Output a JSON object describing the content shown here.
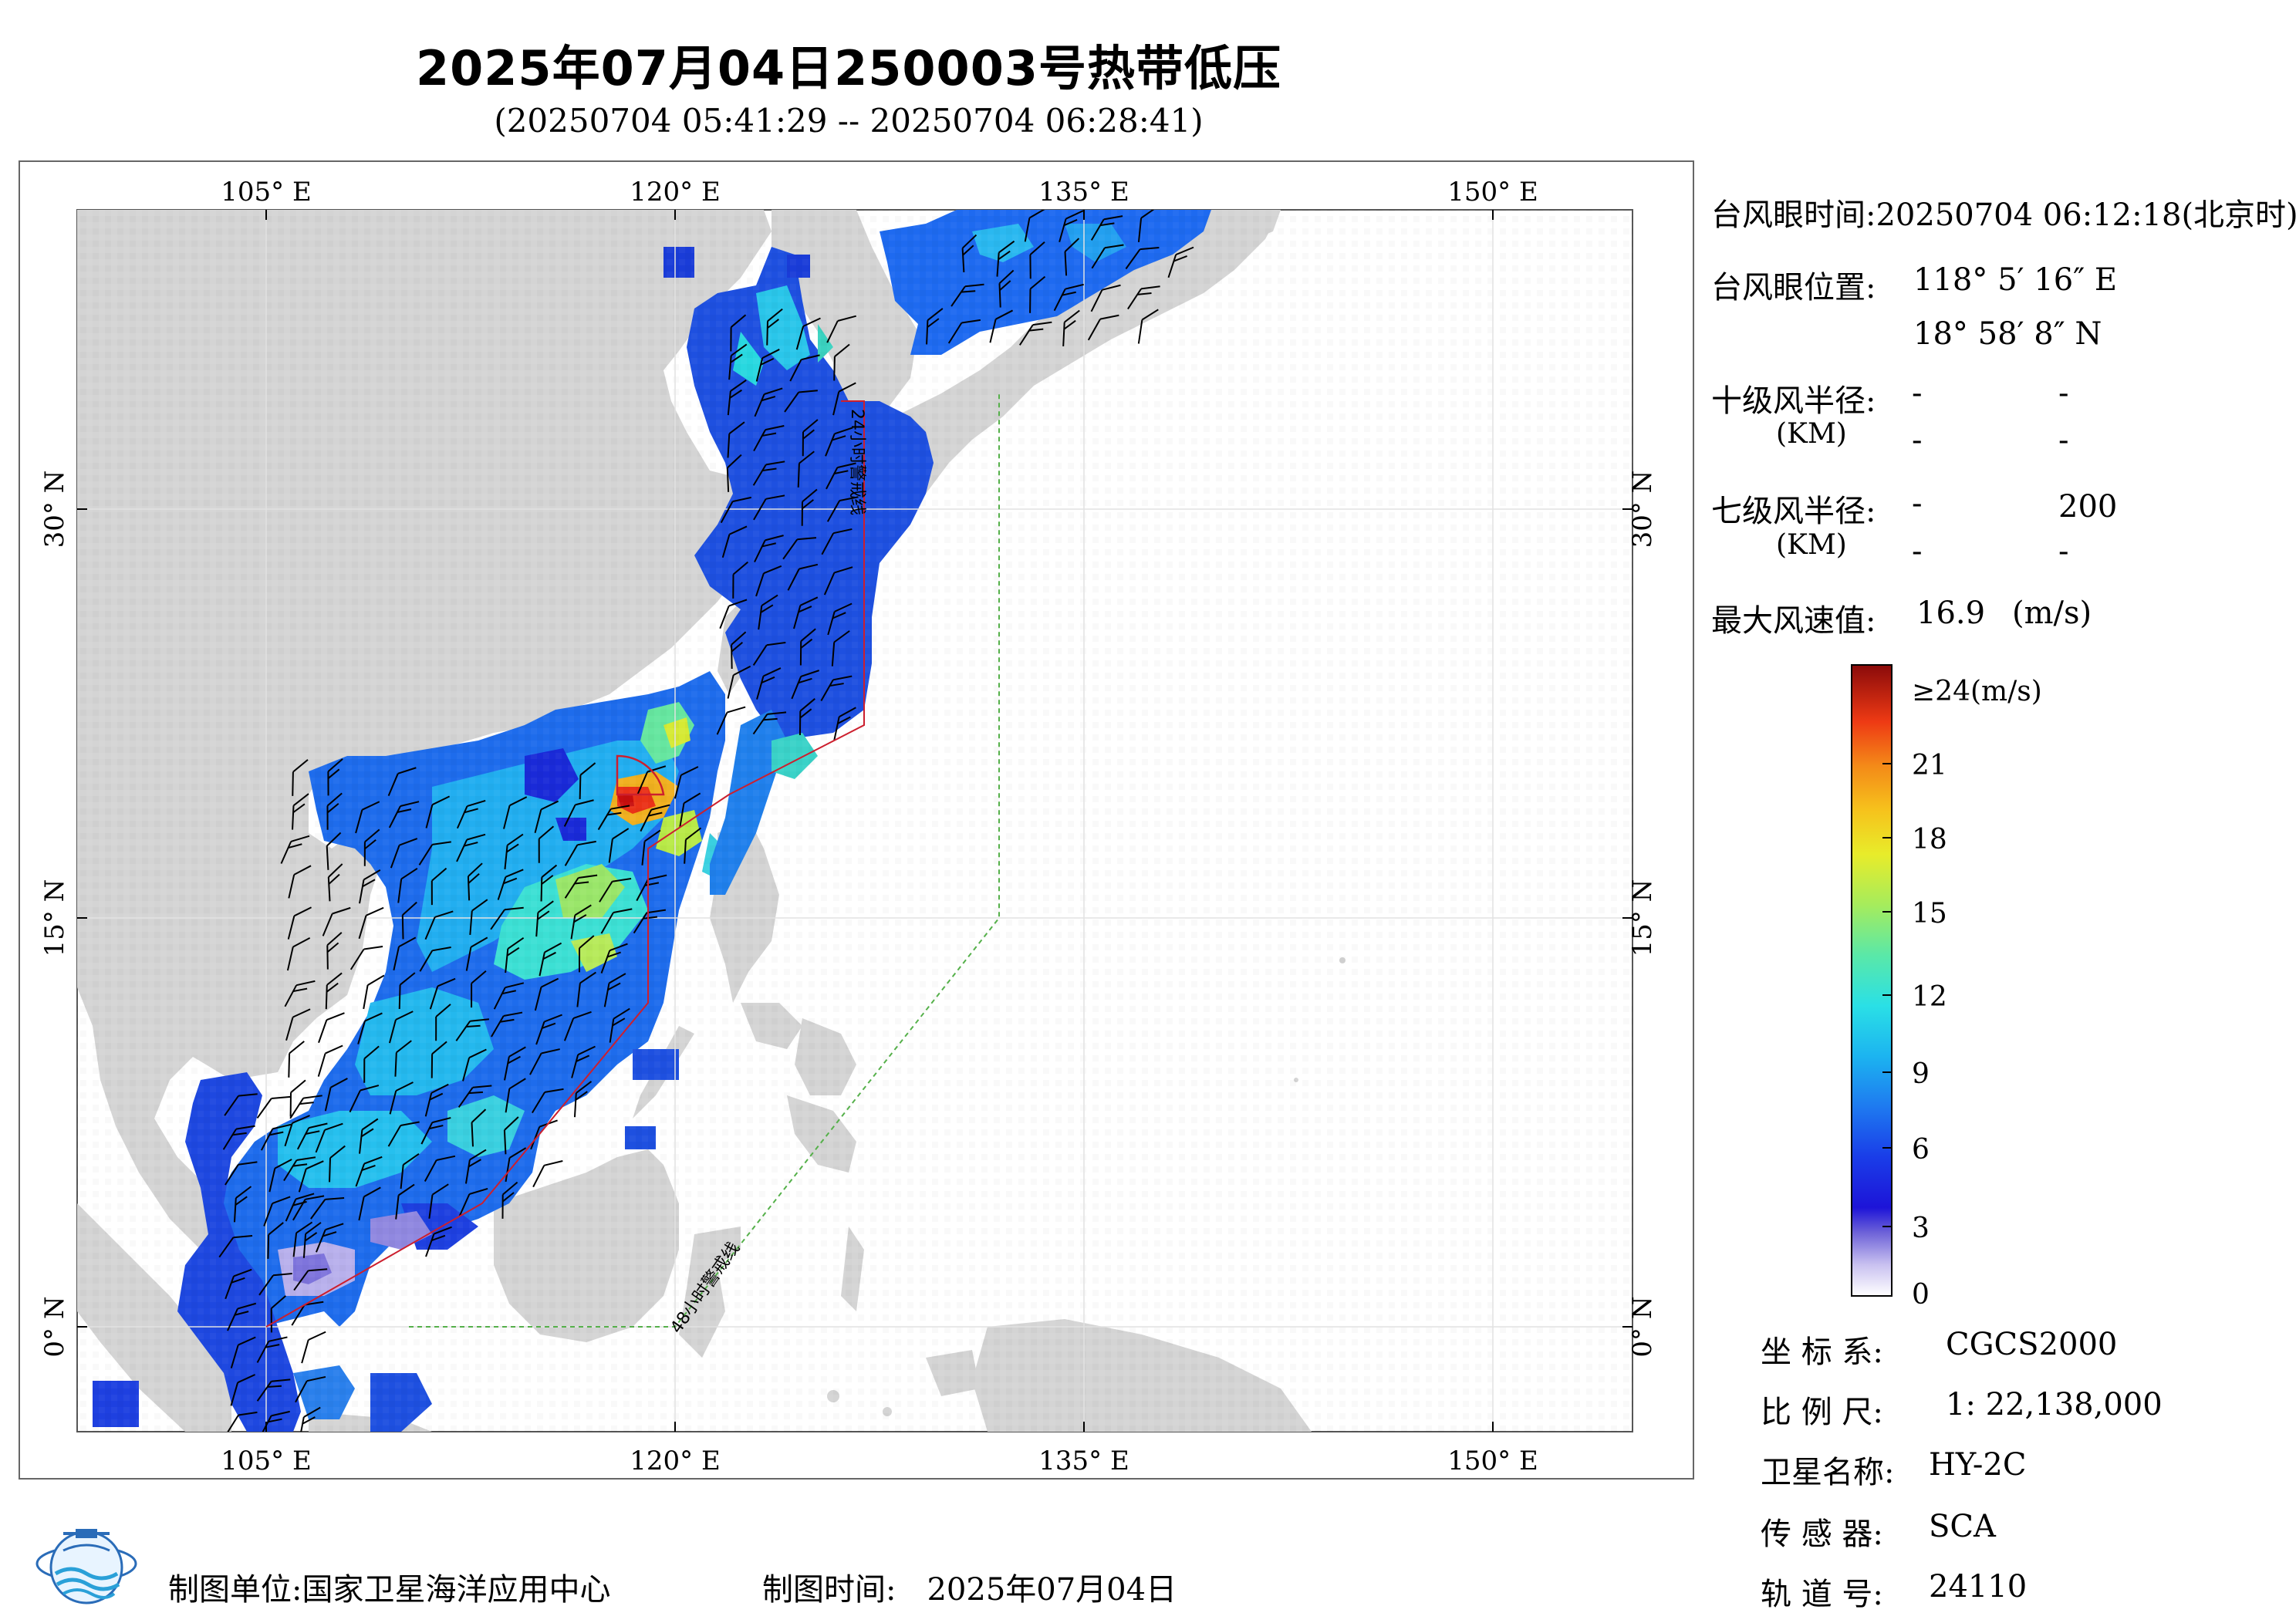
{
  "title": "2025年07月04日250003号热带低压",
  "subtitle": "(20250704 05:41:29 -- 20250704 06:28:41)",
  "map": {
    "lon_labels": [
      "105° E",
      "120° E",
      "135° E",
      "150° E"
    ],
    "lat_labels": [
      "30° N",
      "15° N",
      "0° N"
    ],
    "warning_24h_label": "24小时警戒线",
    "warning_48h_label": "48小时警戒线",
    "colors": {
      "land": "#d4d4d4",
      "sea": "#ffffff",
      "warn24": "#cc1f2e",
      "warn48": "#55b04a",
      "eye_marker": "#cc1f2e"
    }
  },
  "info": {
    "eye_time_label": "台风眼时间:",
    "eye_time_value": "20250704 06:12:18(北京时)",
    "eye_pos_label": "台风眼位置:",
    "eye_lon": "118° 5′ 16″ E",
    "eye_lat": "18° 58′ 8″ N",
    "r10_label": "十级风半径:",
    "r10_unit": "(KM)",
    "r10_values": [
      "-",
      "-",
      "-",
      "-"
    ],
    "r7_label": "七级风半径:",
    "r7_unit": "(KM)",
    "r7_values": [
      "-",
      "200",
      "-",
      "-"
    ],
    "max_wind_label": "最大风速值:",
    "max_wind_value": "16.9",
    "max_wind_unit": "(m/s)"
  },
  "colorbar": {
    "top_label": "≥24(m/s)",
    "ticks": [
      "21",
      "18",
      "15",
      "12",
      "9",
      "6",
      "3",
      "0"
    ]
  },
  "meta": {
    "crs_label": "坐 标 系:",
    "crs_value": "CGCS2000",
    "scale_label": "比 例 尺:",
    "scale_value": "1: 22,138,000",
    "sat_label": "卫星名称:",
    "sat_value": "HY-2C",
    "sensor_label": "传 感 器:",
    "sensor_value": "SCA",
    "orbit_label": "轨 道 号:",
    "orbit_value": "24110"
  },
  "footer": {
    "org_label": "制图单位:",
    "org_value": "国家卫星海洋应用中心",
    "date_label": "制图时间:",
    "date_value": "2025年07月04日"
  }
}
